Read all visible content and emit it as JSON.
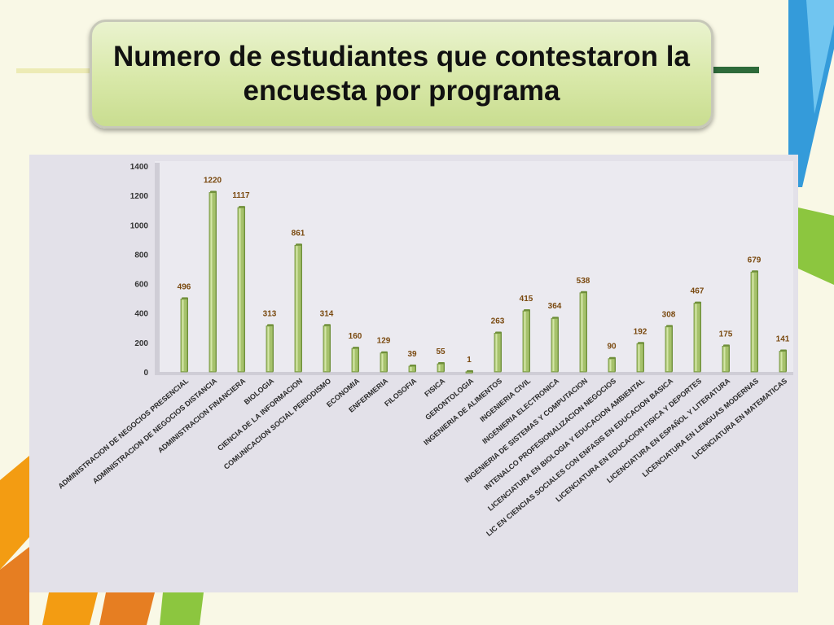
{
  "slide": {
    "title": "Numero de estudiantes que contestaron la encuesta por programa"
  },
  "colors": {
    "bar_fill": "#a6c26c",
    "bar_edge": "#6f8f3a",
    "label_text": "#7a4a10",
    "background": "#f9f8e6",
    "title_box": "#d8e8a8",
    "chart_panel": "#e3e1e9",
    "accent_blue": "#1e90d8",
    "accent_green": "#8cc63f",
    "accent_orange": "#f39c12"
  },
  "chart_data": {
    "type": "bar",
    "title": "",
    "xlabel": "",
    "ylabel": "",
    "ylim": [
      0,
      1400
    ],
    "yticks": [
      0,
      200,
      400,
      600,
      800,
      1000,
      1200,
      1400
    ],
    "grid": false,
    "legend": "none",
    "categories": [
      "ADMINISTRACION DE NEGOCIOS PRESENCIAL",
      "ADMINISTRACION DE NEGOCIOS DISTANCIA",
      "ADMINISTRACION FINANCIERA",
      "BIOLOGIA",
      "CIENCIA DE LA INFORMACION",
      "COMUNICACION SOCIAL PERIODISMO",
      "ECONOMIA",
      "ENFERMERIA",
      "FILOSOFIA",
      "FISICA",
      "GERONTOLOGIA",
      "INGENIERIA DE ALIMENTOS",
      "INGENIERIA CIVIL",
      "INGENIERIA ELECTRONICA",
      "INGENIERIA DE SISTEMAS Y COMPUTACION",
      "INTENALCO PROFESIONALIZACION NEGOCIOS",
      "LICENCIATURA EN BIOLOGIA Y EDUCACION AMBIENTAL",
      "LIC EN CIENCIAS SOCIALES CON ENFASIS EN EDUCACION BASICA",
      "LICENCIATURA EN EDUCACION FISICA Y DEPORTES",
      "LICENCIATURA EN ESPAÑOL Y LITERATURA",
      "LICENCIATURA EN LENGUAS MODERNAS",
      "LICENCIATURA EN MATEMATICAS"
    ],
    "values": [
      496,
      1220,
      1117,
      313,
      861,
      314,
      160,
      129,
      39,
      55,
      1,
      263,
      415,
      364,
      538,
      90,
      192,
      308,
      467,
      175,
      679,
      141
    ]
  }
}
